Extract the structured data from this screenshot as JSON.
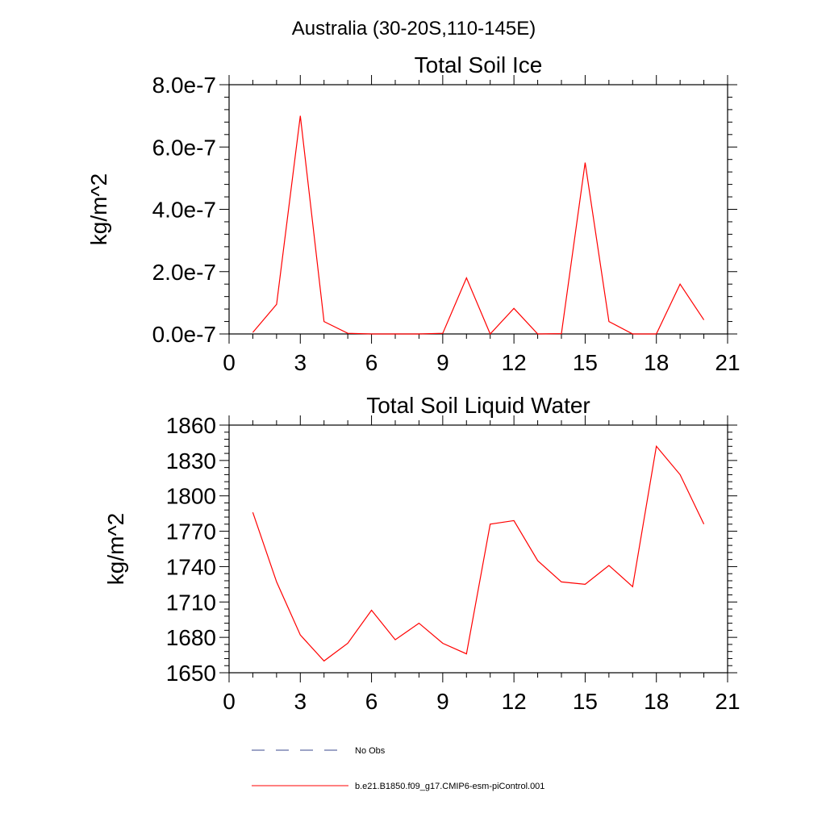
{
  "page_title": "Australia (30-20S,110-145E)",
  "chart_data": [
    {
      "type": "line",
      "title": "Total Soil Ice",
      "xlabel": "",
      "ylabel": "kg/m^2",
      "xlim": [
        0,
        21
      ],
      "ylim": [
        0,
        8e-07
      ],
      "x_ticks": [
        0,
        3,
        6,
        9,
        12,
        15,
        18,
        21
      ],
      "x_tick_labels": [
        "0",
        "3",
        "6",
        "9",
        "12",
        "15",
        "18",
        "21"
      ],
      "y_ticks": [
        0,
        2e-07,
        4e-07,
        6e-07,
        8e-07
      ],
      "y_tick_labels": [
        "0.0e-7",
        "2.0e-7",
        "4.0e-7",
        "6.0e-7",
        "8.0e-7"
      ],
      "grid": false,
      "series": [
        {
          "name": "b.e21.B1850.f09_g17.CMIP6-esm-piControl.001",
          "color": "#ff0000",
          "x": [
            1,
            2,
            3,
            4,
            5,
            6,
            7,
            8,
            9,
            10,
            11,
            12,
            13,
            14,
            15,
            16,
            17,
            18,
            19,
            20
          ],
          "values": [
            5e-09,
            9.5e-08,
            7e-07,
            4e-08,
            2e-09,
            0.0,
            0.0,
            0.0,
            2e-09,
            1.8e-07,
            0.0,
            8.2e-08,
            0.0,
            1e-09,
            5.5e-07,
            4e-08,
            0.0,
            0.0,
            1.6e-07,
            4.5e-08
          ]
        }
      ]
    },
    {
      "type": "line",
      "title": "Total Soil Liquid Water",
      "xlabel": "",
      "ylabel": "kg/m^2",
      "xlim": [
        0,
        21
      ],
      "ylim": [
        1650,
        1860
      ],
      "x_ticks": [
        0,
        3,
        6,
        9,
        12,
        15,
        18,
        21
      ],
      "x_tick_labels": [
        "0",
        "3",
        "6",
        "9",
        "12",
        "15",
        "18",
        "21"
      ],
      "y_ticks": [
        1650,
        1680,
        1710,
        1740,
        1770,
        1800,
        1830,
        1860
      ],
      "y_tick_labels": [
        "1650",
        "1680",
        "1710",
        "1740",
        "1770",
        "1800",
        "1830",
        "1860"
      ],
      "grid": false,
      "series": [
        {
          "name": "b.e21.B1850.f09_g17.CMIP6-esm-piControl.001",
          "color": "#ff0000",
          "x": [
            1,
            2,
            3,
            4,
            5,
            6,
            7,
            8,
            9,
            10,
            11,
            12,
            13,
            14,
            15,
            16,
            17,
            18,
            19,
            20
          ],
          "values": [
            1786,
            1727,
            1682,
            1660,
            1675,
            1703,
            1678,
            1692,
            1675,
            1666,
            1776,
            1779,
            1745,
            1727,
            1725,
            1741,
            1723,
            1842,
            1818,
            1776
          ]
        }
      ]
    }
  ],
  "legend": {
    "placement": "bottom",
    "items": [
      {
        "label": "No Obs",
        "color": "#3b4a8c",
        "style": "dashed"
      },
      {
        "label": "b.e21.B1850.f09_g17.CMIP6-esm-piControl.001",
        "color": "#ff0000",
        "style": "solid"
      }
    ]
  }
}
